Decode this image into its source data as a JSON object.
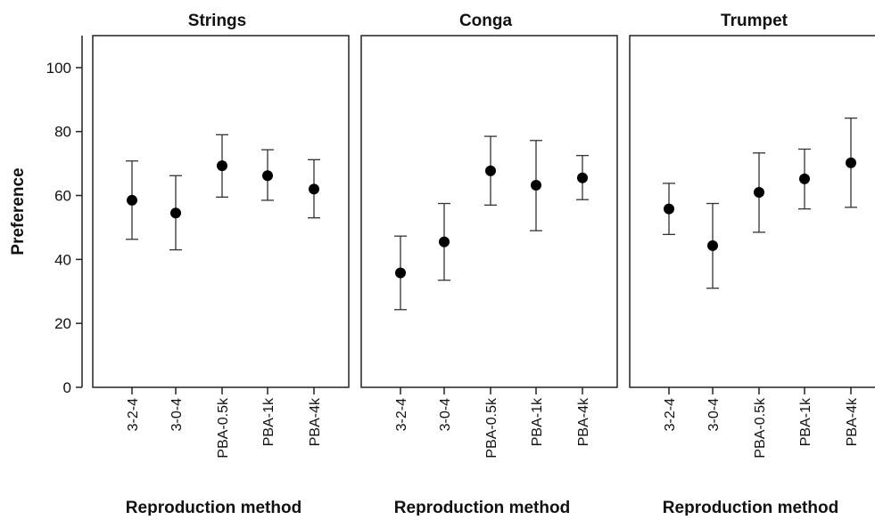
{
  "chart_data": [
    {
      "type": "scatter",
      "title": "Strings",
      "xlabel": "Reproduction method",
      "ylabel": "Preference",
      "ylim": [
        0,
        110
      ],
      "yticks": [
        0,
        20,
        40,
        60,
        80,
        100
      ],
      "categories": [
        "3-2-4",
        "3-0-4",
        "PBA-0.5k",
        "PBA-1k",
        "PBA-4k"
      ],
      "values": [
        58.5,
        54.5,
        69.3,
        66.2,
        62.0
      ],
      "error_low": [
        46.3,
        43.0,
        59.5,
        58.5,
        53.0
      ],
      "error_high": [
        70.8,
        66.2,
        79.0,
        74.3,
        71.2
      ],
      "grid": false
    },
    {
      "type": "scatter",
      "title": "Conga",
      "xlabel": "Reproduction method",
      "ylabel": "",
      "ylim": [
        0,
        110
      ],
      "categories": [
        "3-2-4",
        "3-0-4",
        "PBA-0.5k",
        "PBA-1k",
        "PBA-4k"
      ],
      "values": [
        35.8,
        45.5,
        67.7,
        63.2,
        65.5
      ],
      "error_low": [
        24.3,
        33.5,
        57.0,
        49.0,
        58.7
      ],
      "error_high": [
        47.3,
        57.5,
        78.5,
        77.2,
        72.5
      ],
      "grid": false
    },
    {
      "type": "scatter",
      "title": "Trumpet",
      "xlabel": "Reproduction method",
      "ylabel": "",
      "ylim": [
        0,
        110
      ],
      "categories": [
        "3-2-4",
        "3-0-4",
        "PBA-0.5k",
        "PBA-1k",
        "PBA-4k"
      ],
      "values": [
        55.8,
        44.3,
        61.0,
        65.2,
        70.2
      ],
      "error_low": [
        47.8,
        31.0,
        48.5,
        55.8,
        56.3
      ],
      "error_high": [
        63.8,
        57.5,
        73.3,
        74.5,
        84.2
      ],
      "grid": false
    }
  ]
}
